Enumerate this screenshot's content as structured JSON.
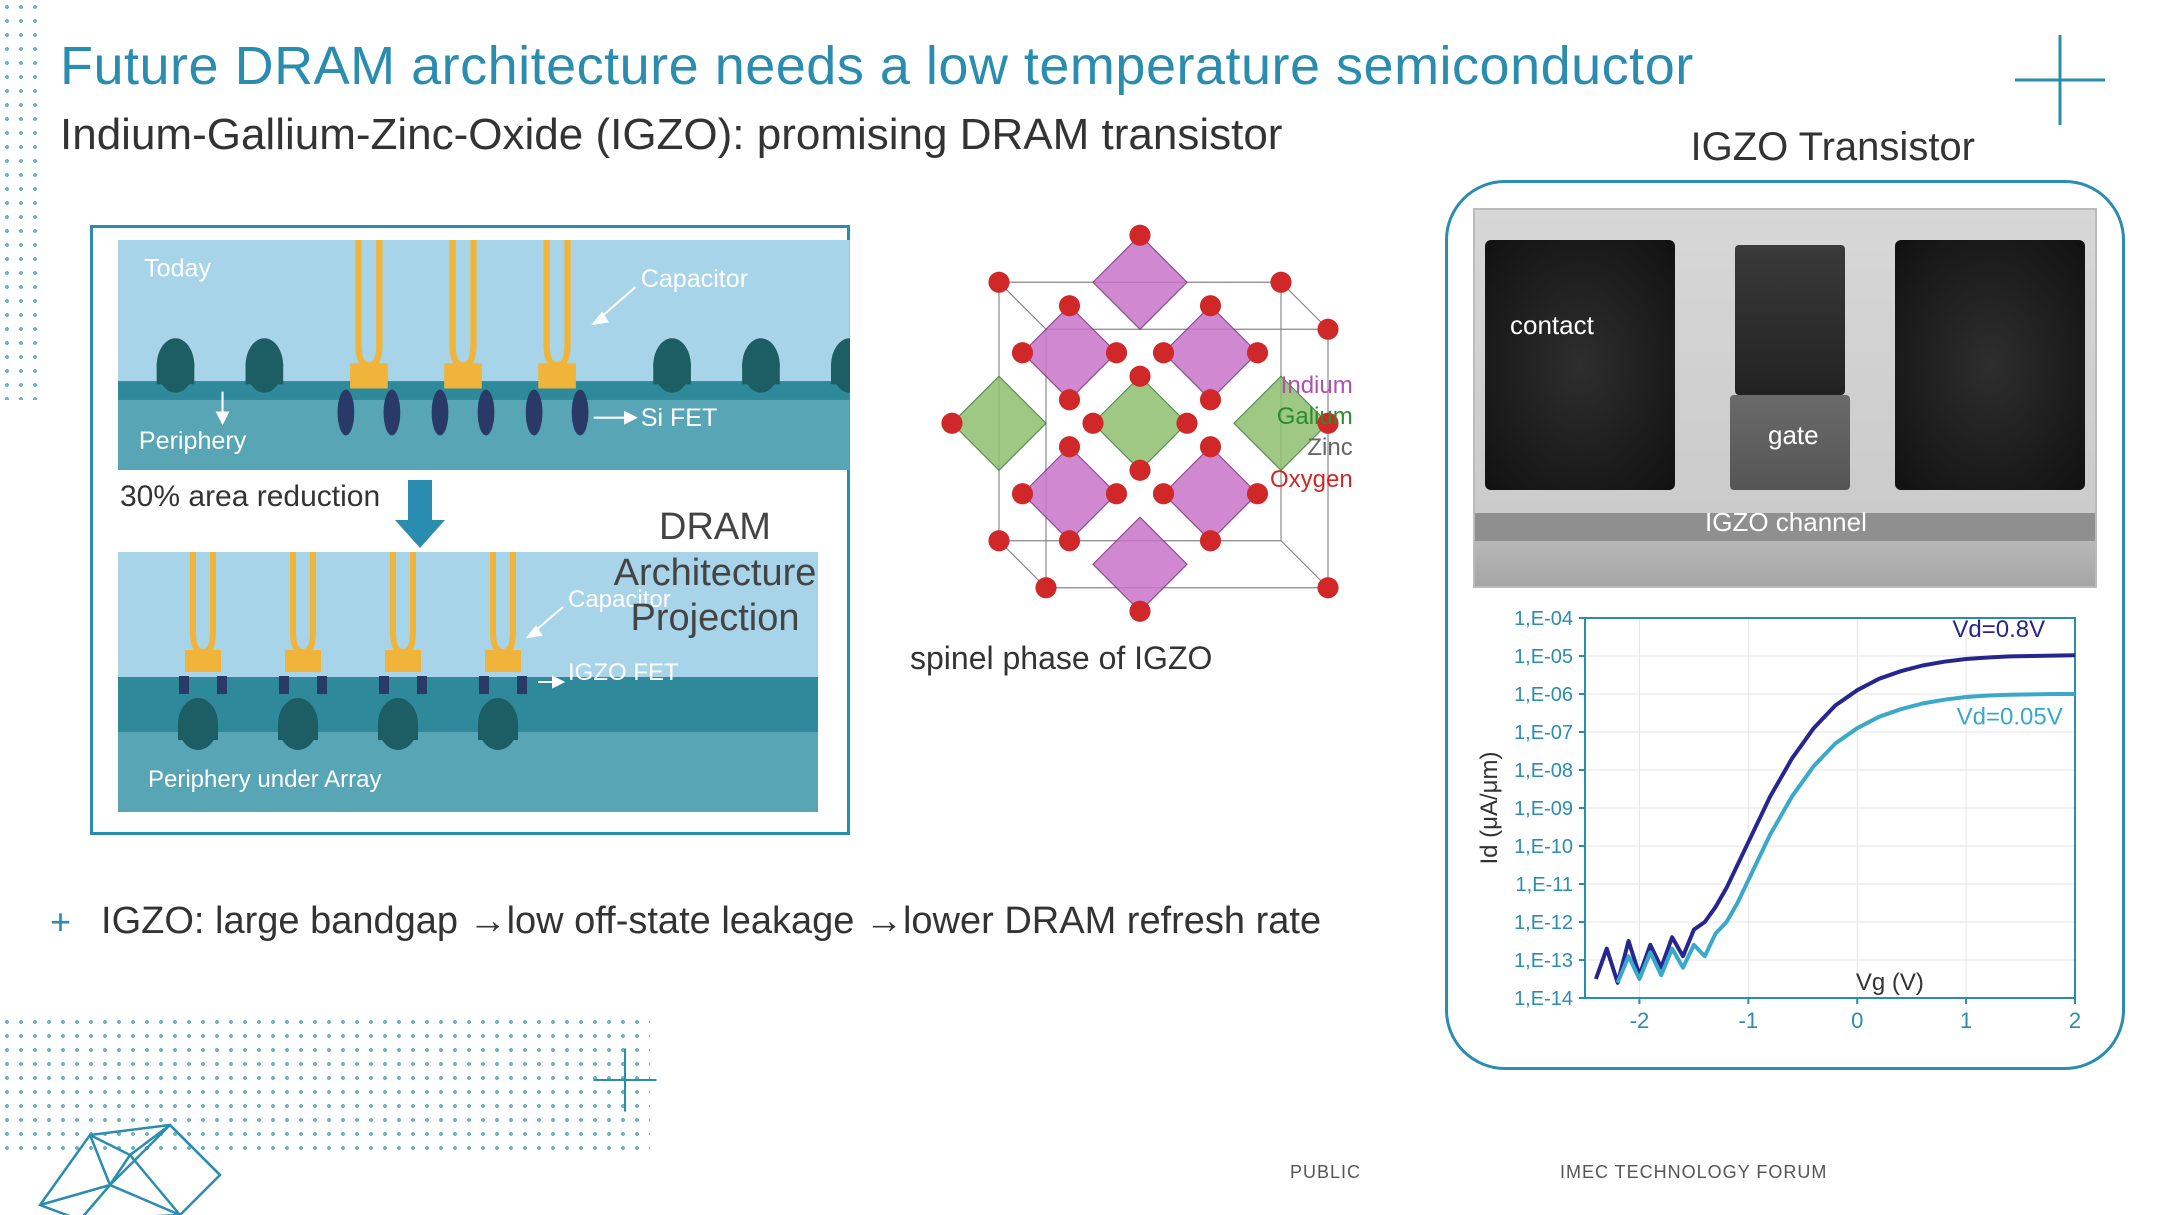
{
  "title": "Future DRAM architecture needs a low temperature semiconductor",
  "subtitle": "Indium-Gallium-Zinc-Oxide (IGZO): promising DRAM transistor",
  "dram": {
    "today_label": "Today",
    "capacitor": "Capacitor",
    "periphery": "Periphery",
    "si_fet": "Si FET",
    "area_reduction": "30% area reduction",
    "future_capacitor": "Capacitor",
    "igzo_fet": "IGZO FET",
    "periphery_under": "Periphery under Array",
    "projection_title": "DRAM Architecture Projection",
    "colors": {
      "sky": "#a7d4e8",
      "teal_dark": "#2e8a9b",
      "teal_mid": "#58a5b5",
      "capacitor_yellow": "#f0b43a",
      "fet_navy": "#2a3a66",
      "periph_green": "#1d5d64"
    }
  },
  "spinel": {
    "caption": "spinel phase of IGZO",
    "legend": {
      "indium": {
        "label": "Indium",
        "color": "#b04fb0"
      },
      "gallium": {
        "label": "Galium",
        "color": "#2c8c2c"
      },
      "zinc": {
        "label": "Zinc",
        "color": "#666666"
      },
      "oxygen": {
        "label": "Oxygen",
        "color": "#d02828"
      }
    }
  },
  "bullet": "IGZO: large bandgap →low off-state leakage →lower DRAM refresh rate",
  "footer": {
    "public": "PUBLIC",
    "forum": "IMEC TECHNOLOGY FORUM"
  },
  "igzo_panel": {
    "title": "IGZO Transistor",
    "tem": {
      "contact": "contact",
      "gate": "gate",
      "channel": "IGZO channel"
    },
    "chart": {
      "type": "line",
      "ylabel": "Id (μA/μm)",
      "xlabel": "Vg (V)",
      "xlim": [
        -2.5,
        2
      ],
      "xticks": [
        -2,
        -1,
        0,
        1,
        2
      ],
      "ylim_exp": [
        -14,
        -4
      ],
      "yticks_exp": [
        -14,
        -13,
        -12,
        -11,
        -10,
        -9,
        -8,
        -7,
        -6,
        -5,
        -4
      ],
      "ytick_labels": [
        "1,E-14",
        "1,E-13",
        "1,E-12",
        "1,E-11",
        "1,E-10",
        "1,E-09",
        "1,E-08",
        "1,E-07",
        "1,E-06",
        "1,E-05",
        "1,E-04"
      ],
      "grid_color": "#e6e6e6",
      "axis_color": "#2a8db0",
      "series": [
        {
          "name": "Vd=0.8V",
          "color": "#26268f",
          "width": 4,
          "points": [
            [
              -2.4,
              -13.5
            ],
            [
              -2.3,
              -12.7
            ],
            [
              -2.2,
              -13.6
            ],
            [
              -2.1,
              -12.5
            ],
            [
              -2.0,
              -13.4
            ],
            [
              -1.9,
              -12.6
            ],
            [
              -1.8,
              -13.2
            ],
            [
              -1.7,
              -12.4
            ],
            [
              -1.6,
              -12.9
            ],
            [
              -1.5,
              -12.2
            ],
            [
              -1.4,
              -12.0
            ],
            [
              -1.3,
              -11.6
            ],
            [
              -1.2,
              -11.1
            ],
            [
              -1.1,
              -10.5
            ],
            [
              -1.0,
              -9.9
            ],
            [
              -0.9,
              -9.3
            ],
            [
              -0.8,
              -8.7
            ],
            [
              -0.7,
              -8.2
            ],
            [
              -0.6,
              -7.7
            ],
            [
              -0.5,
              -7.3
            ],
            [
              -0.4,
              -6.9
            ],
            [
              -0.3,
              -6.6
            ],
            [
              -0.2,
              -6.3
            ],
            [
              -0.1,
              -6.1
            ],
            [
              0.0,
              -5.9
            ],
            [
              0.2,
              -5.6
            ],
            [
              0.4,
              -5.4
            ],
            [
              0.6,
              -5.25
            ],
            [
              0.8,
              -5.15
            ],
            [
              1.0,
              -5.08
            ],
            [
              1.2,
              -5.04
            ],
            [
              1.4,
              -5.01
            ],
            [
              1.6,
              -5.0
            ],
            [
              1.8,
              -4.99
            ],
            [
              2.0,
              -4.98
            ]
          ]
        },
        {
          "name": "Vd=0.05V",
          "color": "#3aa8c9",
          "width": 4,
          "points": [
            [
              -2.2,
              -13.6
            ],
            [
              -2.1,
              -12.9
            ],
            [
              -2.0,
              -13.5
            ],
            [
              -1.9,
              -12.8
            ],
            [
              -1.8,
              -13.4
            ],
            [
              -1.7,
              -12.7
            ],
            [
              -1.6,
              -13.2
            ],
            [
              -1.5,
              -12.6
            ],
            [
              -1.4,
              -12.9
            ],
            [
              -1.3,
              -12.3
            ],
            [
              -1.2,
              -12.0
            ],
            [
              -1.1,
              -11.5
            ],
            [
              -1.0,
              -10.9
            ],
            [
              -0.9,
              -10.3
            ],
            [
              -0.8,
              -9.7
            ],
            [
              -0.7,
              -9.2
            ],
            [
              -0.6,
              -8.7
            ],
            [
              -0.5,
              -8.3
            ],
            [
              -0.4,
              -7.9
            ],
            [
              -0.3,
              -7.6
            ],
            [
              -0.2,
              -7.3
            ],
            [
              -0.1,
              -7.1
            ],
            [
              0.0,
              -6.9
            ],
            [
              0.2,
              -6.6
            ],
            [
              0.4,
              -6.4
            ],
            [
              0.6,
              -6.25
            ],
            [
              0.8,
              -6.15
            ],
            [
              1.0,
              -6.08
            ],
            [
              1.2,
              -6.04
            ],
            [
              1.4,
              -6.02
            ],
            [
              1.6,
              -6.01
            ],
            [
              1.8,
              -6.0
            ],
            [
              2.0,
              -6.0
            ]
          ]
        }
      ]
    }
  },
  "colors": {
    "accent": "#2a8db0"
  }
}
